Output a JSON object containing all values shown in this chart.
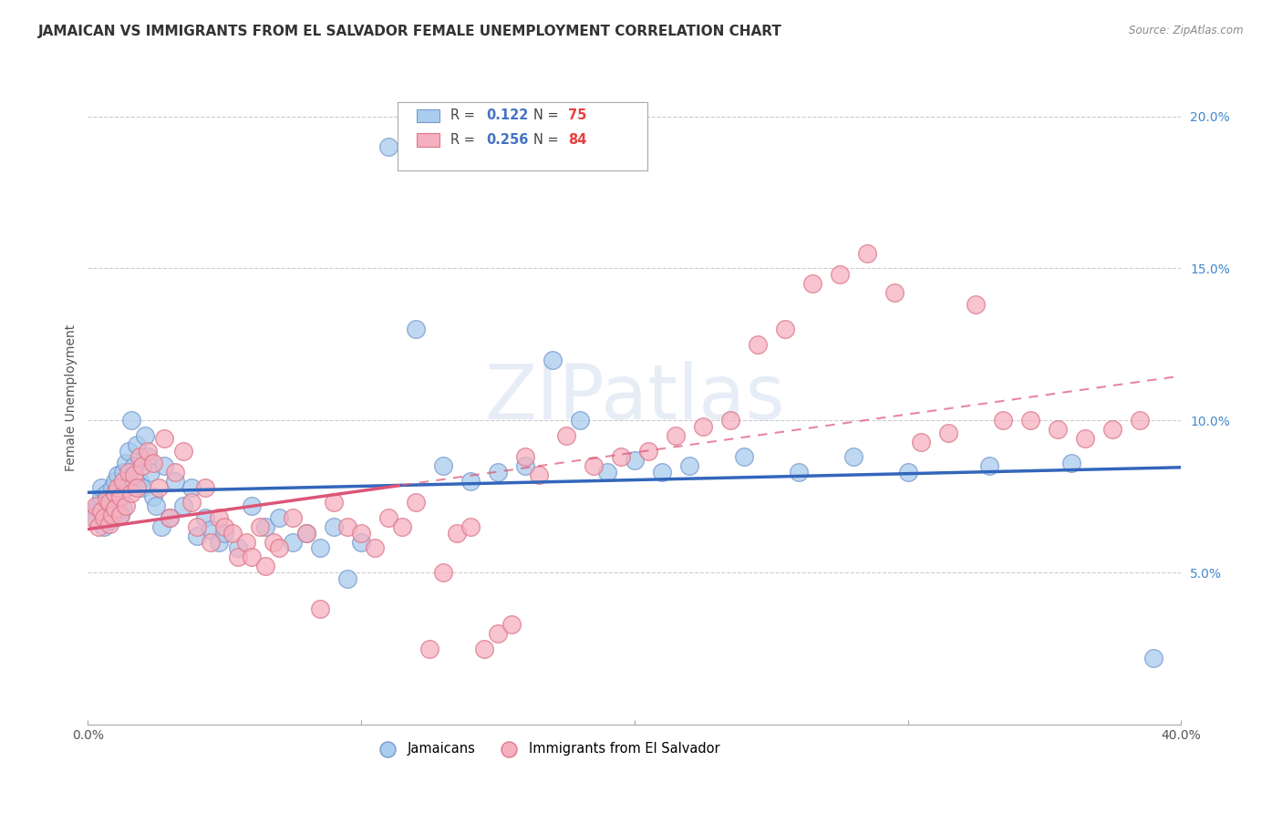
{
  "title": "JAMAICAN VS IMMIGRANTS FROM EL SALVADOR FEMALE UNEMPLOYMENT CORRELATION CHART",
  "source": "Source: ZipAtlas.com",
  "ylabel": "Female Unemployment",
  "xmin": 0.0,
  "xmax": 0.4,
  "ymin": 0.0,
  "ymax": 0.215,
  "yticks": [
    0.05,
    0.1,
    0.15,
    0.2
  ],
  "ytick_labels": [
    "5.0%",
    "10.0%",
    "15.0%",
    "20.0%"
  ],
  "xtick_left_label": "0.0%",
  "xtick_right_label": "40.0%",
  "series1_label": "Jamaicans",
  "series2_label": "Immigrants from El Salvador",
  "series1_color": "#aaccee",
  "series2_color": "#f5b0c0",
  "series1_edge_color": "#7799cc",
  "series2_edge_color": "#dd7788",
  "series1_R": "0.122",
  "series1_N": "75",
  "series2_R": "0.256",
  "series2_N": "84",
  "legend_R_color": "#4472c4",
  "legend_N_color": "#e84040",
  "trend1_color": "#3366bb",
  "trend2_color": "#dd5577",
  "background_color": "#ffffff",
  "grid_color": "#cccccc",
  "right_axis_color": "#4488cc",
  "title_fontsize": 11,
  "axis_label_fontsize": 10,
  "tick_fontsize": 10,
  "series1_x": [
    0.002,
    0.003,
    0.004,
    0.005,
    0.005,
    0.006,
    0.006,
    0.007,
    0.007,
    0.008,
    0.008,
    0.009,
    0.009,
    0.01,
    0.01,
    0.01,
    0.011,
    0.011,
    0.012,
    0.012,
    0.013,
    0.013,
    0.014,
    0.014,
    0.015,
    0.016,
    0.017,
    0.018,
    0.019,
    0.02,
    0.021,
    0.022,
    0.023,
    0.024,
    0.025,
    0.027,
    0.028,
    0.03,
    0.032,
    0.035,
    0.038,
    0.04,
    0.043,
    0.045,
    0.048,
    0.05,
    0.055,
    0.06,
    0.065,
    0.07,
    0.075,
    0.08,
    0.085,
    0.09,
    0.095,
    0.1,
    0.11,
    0.12,
    0.13,
    0.14,
    0.15,
    0.16,
    0.17,
    0.18,
    0.19,
    0.2,
    0.21,
    0.22,
    0.24,
    0.26,
    0.28,
    0.3,
    0.33,
    0.36,
    0.39
  ],
  "series1_y": [
    0.07,
    0.068,
    0.072,
    0.075,
    0.078,
    0.065,
    0.071,
    0.069,
    0.076,
    0.067,
    0.074,
    0.073,
    0.078,
    0.072,
    0.08,
    0.068,
    0.075,
    0.082,
    0.077,
    0.069,
    0.083,
    0.071,
    0.086,
    0.078,
    0.09,
    0.1,
    0.085,
    0.092,
    0.08,
    0.078,
    0.095,
    0.088,
    0.083,
    0.075,
    0.072,
    0.065,
    0.085,
    0.068,
    0.08,
    0.072,
    0.078,
    0.062,
    0.068,
    0.064,
    0.06,
    0.063,
    0.058,
    0.072,
    0.065,
    0.068,
    0.06,
    0.063,
    0.058,
    0.065,
    0.048,
    0.06,
    0.19,
    0.13,
    0.085,
    0.08,
    0.083,
    0.085,
    0.12,
    0.1,
    0.083,
    0.087,
    0.083,
    0.085,
    0.088,
    0.083,
    0.088,
    0.083,
    0.085,
    0.086,
    0.022
  ],
  "series2_x": [
    0.002,
    0.003,
    0.004,
    0.005,
    0.006,
    0.007,
    0.008,
    0.008,
    0.009,
    0.01,
    0.01,
    0.011,
    0.012,
    0.012,
    0.013,
    0.014,
    0.015,
    0.016,
    0.017,
    0.018,
    0.019,
    0.02,
    0.022,
    0.024,
    0.026,
    0.028,
    0.03,
    0.032,
    0.035,
    0.038,
    0.04,
    0.043,
    0.045,
    0.048,
    0.05,
    0.053,
    0.055,
    0.058,
    0.06,
    0.063,
    0.065,
    0.068,
    0.07,
    0.075,
    0.08,
    0.085,
    0.09,
    0.095,
    0.1,
    0.105,
    0.11,
    0.115,
    0.12,
    0.125,
    0.13,
    0.135,
    0.14,
    0.145,
    0.15,
    0.155,
    0.16,
    0.165,
    0.175,
    0.185,
    0.195,
    0.205,
    0.215,
    0.225,
    0.235,
    0.245,
    0.255,
    0.265,
    0.275,
    0.285,
    0.295,
    0.305,
    0.315,
    0.325,
    0.335,
    0.345,
    0.355,
    0.365,
    0.375,
    0.385
  ],
  "series2_y": [
    0.068,
    0.072,
    0.065,
    0.07,
    0.068,
    0.074,
    0.066,
    0.073,
    0.069,
    0.076,
    0.071,
    0.078,
    0.069,
    0.075,
    0.08,
    0.072,
    0.083,
    0.076,
    0.082,
    0.078,
    0.088,
    0.085,
    0.09,
    0.086,
    0.078,
    0.094,
    0.068,
    0.083,
    0.09,
    0.073,
    0.065,
    0.078,
    0.06,
    0.068,
    0.065,
    0.063,
    0.055,
    0.06,
    0.055,
    0.065,
    0.052,
    0.06,
    0.058,
    0.068,
    0.063,
    0.038,
    0.073,
    0.065,
    0.063,
    0.058,
    0.068,
    0.065,
    0.073,
    0.025,
    0.05,
    0.063,
    0.065,
    0.025,
    0.03,
    0.033,
    0.088,
    0.082,
    0.095,
    0.085,
    0.088,
    0.09,
    0.095,
    0.098,
    0.1,
    0.125,
    0.13,
    0.145,
    0.148,
    0.155,
    0.142,
    0.093,
    0.096,
    0.138,
    0.1,
    0.1,
    0.097,
    0.094,
    0.097,
    0.1
  ]
}
